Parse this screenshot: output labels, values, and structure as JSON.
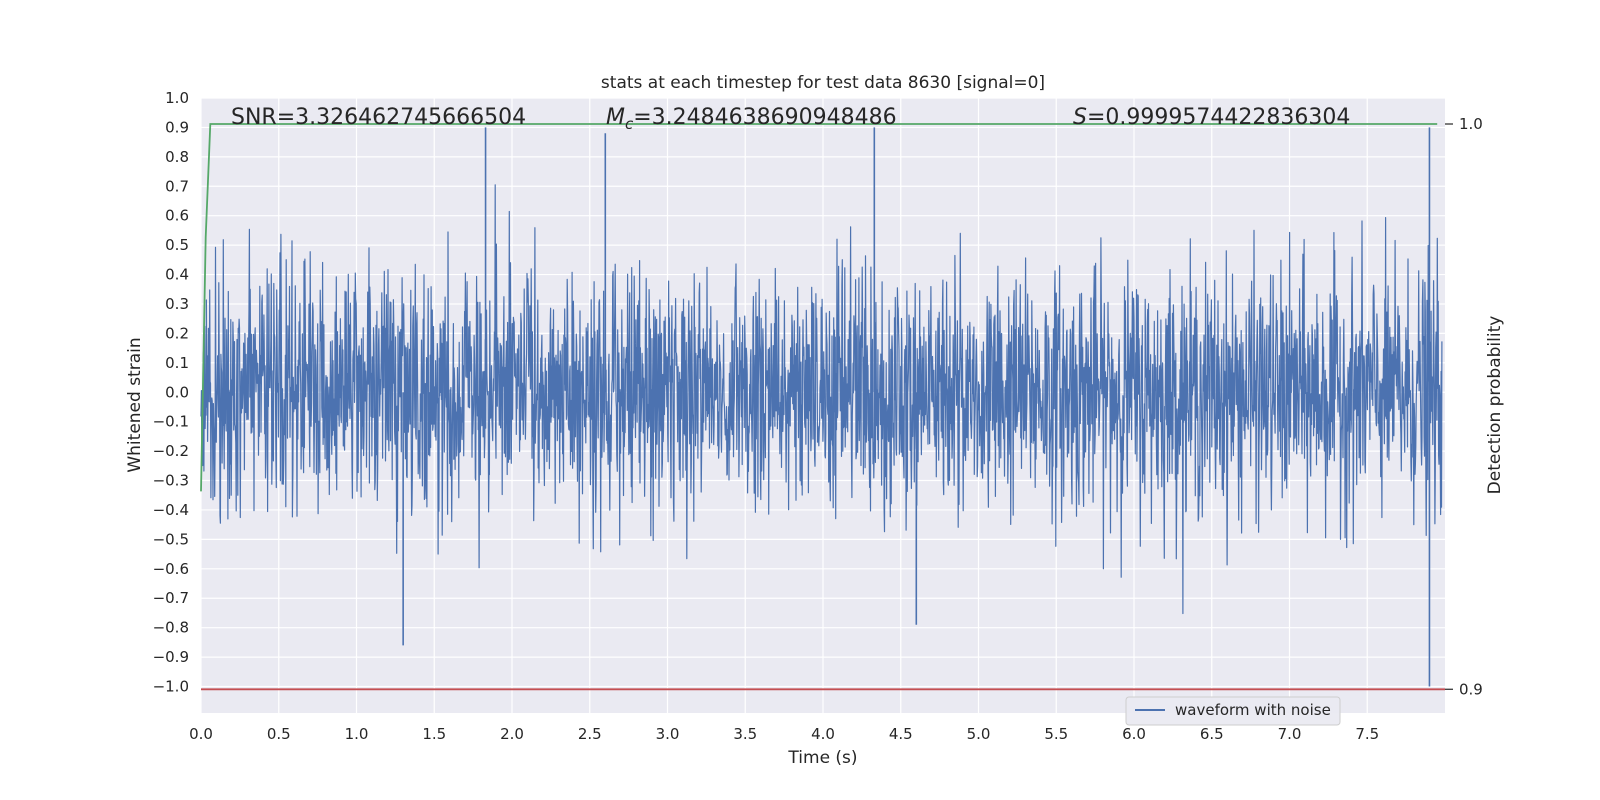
{
  "chart_data": {
    "type": "line",
    "title": "stats at each timestep for test data 8630 [signal=0]",
    "xlabel": "Time (s)",
    "ylabel": "Whitened strain",
    "y2label": "Detection probability",
    "xlim": [
      0.0,
      8.0
    ],
    "ylim": [
      -1.09,
      1.0
    ],
    "y2lim": [
      0.8958,
      1.0046
    ],
    "x_ticks": [
      "0.0",
      "0.5",
      "1.0",
      "1.5",
      "2.0",
      "2.5",
      "3.0",
      "3.5",
      "4.0",
      "4.5",
      "5.0",
      "5.5",
      "6.0",
      "6.5",
      "7.0",
      "7.5"
    ],
    "y_ticks": [
      "1.0",
      "0.9",
      "0.8",
      "0.7",
      "0.6",
      "0.5",
      "0.4",
      "0.3",
      "0.2",
      "0.1",
      "0.0",
      "−0.1",
      "−0.2",
      "−0.3",
      "−0.4",
      "−0.5",
      "−0.6",
      "−0.7",
      "−0.8",
      "−0.9",
      "−1.0"
    ],
    "y2_ticks": [
      "1.0",
      "0.9"
    ],
    "grid": true,
    "legend_position": "lower-right",
    "annotations": {
      "snr": "SNR=3.326462745666504",
      "mc_symbol": "M",
      "mc_sub": "c",
      "mc_value": "=3.2484638690948486",
      "s_symbol": "S",
      "s_value": "=0.9999574422836304"
    },
    "series": [
      {
        "name": "waveform with noise",
        "axis": "left",
        "color": "#4c72b0",
        "description_values": "dense noise, approx. amplitude ±0.55 with spikes up to 0.9 and down to -1.0",
        "sample_count": 8000,
        "envelope": {
          "typical_max": 0.45,
          "typical_min": -0.45,
          "peak_max": 0.9,
          "peak_min": -1.0
        },
        "spikes": [
          {
            "x": 1.83,
            "y": 0.9
          },
          {
            "x": 2.6,
            "y": 0.88
          },
          {
            "x": 4.33,
            "y": 0.9
          },
          {
            "x": 7.9,
            "y": 0.9
          },
          {
            "x": 1.3,
            "y": -0.86
          },
          {
            "x": 7.9,
            "y": -1.0
          },
          {
            "x": 4.6,
            "y": -0.79
          }
        ]
      },
      {
        "name": "",
        "axis": "right",
        "color": "#55a868",
        "x": [
          0.0,
          0.03,
          0.06,
          7.95
        ],
        "y": [
          0.935,
          0.98,
          1.0,
          1.0
        ]
      },
      {
        "name": "",
        "axis": "right",
        "color": "#c44e52",
        "x": [
          0.0,
          8.0
        ],
        "y": [
          0.9,
          0.9
        ]
      }
    ]
  }
}
